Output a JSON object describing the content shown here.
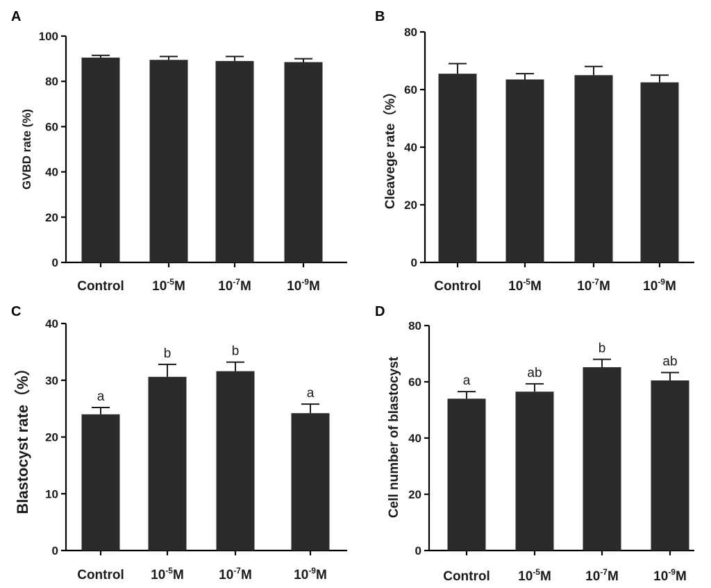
{
  "chart_data": [
    {
      "panel": "A",
      "type": "bar",
      "categories": [
        "Control",
        "10-5M",
        "10-7M",
        "10-9M"
      ],
      "category_parts": [
        [
          "Control",
          "",
          ""
        ],
        [
          "10",
          "-5",
          "M"
        ],
        [
          "10",
          "-7",
          "M"
        ],
        [
          "10",
          "-9",
          "M"
        ]
      ],
      "values": [
        90.5,
        89.5,
        89.0,
        88.5
      ],
      "errors": [
        1.0,
        1.5,
        2.0,
        1.5
      ],
      "sig_labels": [],
      "ylabel": "GVBD rate (%)",
      "ylim": [
        0,
        100
      ],
      "yticks": [
        0,
        20,
        40,
        60,
        80,
        100
      ],
      "title": ""
    },
    {
      "panel": "B",
      "type": "bar",
      "categories": [
        "Control",
        "10-5M",
        "10-7M",
        "10-9M"
      ],
      "category_parts": [
        [
          "Control",
          "",
          ""
        ],
        [
          "10",
          "-5",
          "M"
        ],
        [
          "10",
          "-7",
          "M"
        ],
        [
          "10",
          "-9",
          "M"
        ]
      ],
      "values": [
        65.5,
        63.5,
        65.0,
        62.5
      ],
      "errors": [
        3.5,
        2.0,
        3.0,
        2.5
      ],
      "sig_labels": [],
      "ylabel": "Cleavege rate（%）",
      "ylim": [
        0,
        80
      ],
      "yticks": [
        0,
        20,
        40,
        60,
        80
      ],
      "title": ""
    },
    {
      "panel": "C",
      "type": "bar",
      "categories": [
        "Control",
        "10-5M",
        "10-7M",
        "10-9M"
      ],
      "category_parts": [
        [
          "Control",
          "",
          ""
        ],
        [
          "10",
          "-5",
          "M"
        ],
        [
          "10",
          "-7",
          "M"
        ],
        [
          "10",
          "-9",
          "M"
        ]
      ],
      "values": [
        24.0,
        30.6,
        31.6,
        24.2
      ],
      "errors": [
        1.2,
        2.2,
        1.6,
        1.6
      ],
      "sig_labels": [
        "a",
        "b",
        "b",
        "a"
      ],
      "ylabel": "Blastocyst rate（%）",
      "ylim": [
        0,
        40
      ],
      "yticks": [
        0,
        10,
        20,
        30,
        40
      ],
      "title": ""
    },
    {
      "panel": "D",
      "type": "bar",
      "categories": [
        "Control",
        "10-5M",
        "10-7M",
        "10-9M"
      ],
      "category_parts": [
        [
          "Control",
          "",
          ""
        ],
        [
          "10",
          "-5",
          "M"
        ],
        [
          "10",
          "-7",
          "M"
        ],
        [
          "10",
          "-9",
          "M"
        ]
      ],
      "values": [
        54.0,
        56.5,
        65.2,
        60.5
      ],
      "errors": [
        2.5,
        2.8,
        2.8,
        2.8
      ],
      "sig_labels": [
        "a",
        "ab",
        "b",
        "ab"
      ],
      "ylabel": "Cell number of blastocyst",
      "ylim": [
        0,
        80
      ],
      "yticks": [
        0,
        20,
        40,
        60,
        80
      ],
      "title": ""
    }
  ]
}
